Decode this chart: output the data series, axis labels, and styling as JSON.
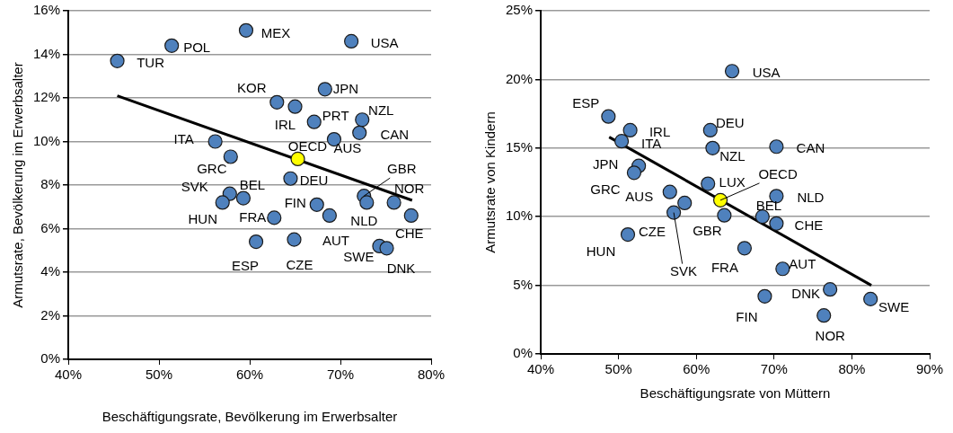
{
  "chart_data": [
    {
      "type": "scatter",
      "xlabel": "Beschäftigungsrate, Bevölkerung im Erwerbsalter",
      "ylabel": "Armutsrate, Bevölkerung im Erwerbsalter",
      "xlim": [
        40,
        80
      ],
      "ylim": [
        0,
        16
      ],
      "xticks": [
        {
          "value": 40,
          "label": "40%"
        },
        {
          "value": 50,
          "label": "50%"
        },
        {
          "value": 60,
          "label": "60%"
        },
        {
          "value": 70,
          "label": "70%"
        },
        {
          "value": 80,
          "label": "80%"
        }
      ],
      "yticks": [
        {
          "value": 0,
          "label": "0%"
        },
        {
          "value": 2,
          "label": "2%"
        },
        {
          "value": 4,
          "label": "4%"
        },
        {
          "value": 6,
          "label": "6%"
        },
        {
          "value": 8,
          "label": "8%"
        },
        {
          "value": 10,
          "label": "10%"
        },
        {
          "value": 12,
          "label": "12%"
        },
        {
          "value": 14,
          "label": "14%"
        },
        {
          "value": 16,
          "label": "16%"
        }
      ],
      "grid": "y",
      "legend": false,
      "marker": "circle",
      "series": [
        {
          "type": "line",
          "marker": "none",
          "color": "#000000",
          "x": [
            45.4,
            77.9
          ],
          "values": [
            12.1,
            7.3
          ]
        },
        {
          "color": "#4f81bd",
          "x": [
            45.4,
            51.4,
            59.6,
            71.2,
            63.0,
            65.0,
            68.3,
            67.1,
            72.4,
            72.1,
            69.3,
            56.2,
            57.9,
            64.5,
            57.8,
            57.0,
            59.3,
            72.6,
            75.9,
            72.9,
            67.4,
            62.7,
            68.8,
            77.8,
            60.7,
            64.9,
            74.3,
            75.1
          ],
          "values": [
            13.7,
            14.4,
            15.1,
            14.6,
            11.8,
            11.6,
            12.4,
            10.9,
            11.0,
            10.4,
            10.1,
            10.0,
            9.3,
            8.3,
            7.6,
            7.2,
            7.4,
            7.5,
            7.2,
            7.2,
            7.1,
            6.5,
            6.6,
            6.6,
            5.4,
            5.5,
            5.2,
            5.1
          ]
        },
        {
          "color": "#ffff00",
          "x": [
            65.3
          ],
          "values": [
            9.2
          ]
        }
      ],
      "annotations": [
        {
          "text": "TUR",
          "x": 45.4,
          "y": 13.7
        },
        {
          "text": "POL",
          "x": 51.4,
          "y": 14.4
        },
        {
          "text": "MEX",
          "x": 59.6,
          "y": 15.1
        },
        {
          "text": "USA",
          "x": 71.2,
          "y": 14.6
        },
        {
          "text": "KOR",
          "x": 63.0,
          "y": 11.8
        },
        {
          "text": "IRL",
          "x": 65.0,
          "y": 11.6
        },
        {
          "text": "JPN",
          "x": 68.3,
          "y": 12.4
        },
        {
          "text": "PRT",
          "x": 67.1,
          "y": 10.9
        },
        {
          "text": "NZL",
          "x": 72.4,
          "y": 11.0
        },
        {
          "text": "CAN",
          "x": 72.1,
          "y": 10.4
        },
        {
          "text": "AUS",
          "x": 69.3,
          "y": 10.1
        },
        {
          "text": "ITA",
          "x": 56.2,
          "y": 10.0
        },
        {
          "text": "GRC",
          "x": 57.9,
          "y": 9.3
        },
        {
          "text": "DEU",
          "x": 64.5,
          "y": 8.3
        },
        {
          "text": "SVK",
          "x": 57.8,
          "y": 7.6
        },
        {
          "text": "HUN",
          "x": 57.0,
          "y": 7.2
        },
        {
          "text": "BEL",
          "x": 59.3,
          "y": 7.4
        },
        {
          "text": "GBR",
          "x": 72.6,
          "y": 7.5
        },
        {
          "text": "NOR",
          "x": 75.9,
          "y": 7.2
        },
        {
          "text": "NLD",
          "x": 72.9,
          "y": 7.2
        },
        {
          "text": "FIN",
          "x": 67.4,
          "y": 7.1
        },
        {
          "text": "FRA",
          "x": 62.7,
          "y": 6.5
        },
        {
          "text": "AUT",
          "x": 68.8,
          "y": 6.6
        },
        {
          "text": "CHE",
          "x": 77.8,
          "y": 6.6
        },
        {
          "text": "ESP",
          "x": 60.7,
          "y": 5.4
        },
        {
          "text": "CZE",
          "x": 64.9,
          "y": 5.5
        },
        {
          "text": "SWE",
          "x": 74.3,
          "y": 5.2
        },
        {
          "text": "DNK",
          "x": 75.1,
          "y": 5.1
        },
        {
          "text": "OECD",
          "x": 65.3,
          "y": 9.2
        }
      ]
    },
    {
      "type": "scatter",
      "xlabel": "Beschäftigungsrate von Müttern",
      "ylabel": "Armutsrate von Kindern",
      "xlim": [
        40,
        90
      ],
      "ylim": [
        0,
        25
      ],
      "xticks": [
        {
          "value": 40,
          "label": "40%"
        },
        {
          "value": 50,
          "label": "50%"
        },
        {
          "value": 60,
          "label": "60%"
        },
        {
          "value": 70,
          "label": "70%"
        },
        {
          "value": 80,
          "label": "80%"
        },
        {
          "value": 90,
          "label": "90%"
        }
      ],
      "yticks": [
        {
          "value": 0,
          "label": "0%"
        },
        {
          "value": 5,
          "label": "5%"
        },
        {
          "value": 10,
          "label": "10%"
        },
        {
          "value": 15,
          "label": "15%"
        },
        {
          "value": 20,
          "label": "20%"
        },
        {
          "value": 25,
          "label": "25%"
        }
      ],
      "grid": "y",
      "legend": false,
      "marker": "circle",
      "series": [
        {
          "type": "line",
          "marker": "none",
          "color": "#000000",
          "x": [
            48.8,
            82.5
          ],
          "values": [
            15.8,
            5.0
          ]
        },
        {
          "color": "#4f81bd",
          "x": [
            64.6,
            48.7,
            51.5,
            50.4,
            61.8,
            62.1,
            70.3,
            52.6,
            52.0,
            61.5,
            56.6,
            70.3,
            68.5,
            63.6,
            57.1,
            70.3,
            51.2,
            66.2,
            71.1,
            68.8,
            77.2,
            82.4,
            76.4,
            58.5
          ],
          "values": [
            20.6,
            17.3,
            16.3,
            15.5,
            16.3,
            15.0,
            15.1,
            13.7,
            13.2,
            12.4,
            11.8,
            11.5,
            10.0,
            10.1,
            10.3,
            9.5,
            8.7,
            7.7,
            6.2,
            4.2,
            4.7,
            4.0,
            2.8,
            11.0
          ]
        },
        {
          "color": "#ffff00",
          "x": [
            63.1
          ],
          "values": [
            11.2
          ]
        }
      ],
      "annotations": [
        {
          "text": "USA",
          "x": 64.6,
          "y": 20.6
        },
        {
          "text": "ESP",
          "x": 48.7,
          "y": 17.3
        },
        {
          "text": "IRL",
          "x": 51.5,
          "y": 16.3
        },
        {
          "text": "ITA",
          "x": 50.4,
          "y": 15.5
        },
        {
          "text": "DEU",
          "x": 61.8,
          "y": 16.3
        },
        {
          "text": "NZL",
          "x": 62.1,
          "y": 15.0
        },
        {
          "text": "CAN",
          "x": 70.3,
          "y": 15.1
        },
        {
          "text": "JPN",
          "x": 52.6,
          "y": 13.7
        },
        {
          "text": "GRC",
          "x": 52.0,
          "y": 13.2
        },
        {
          "text": "LUX",
          "x": 61.5,
          "y": 12.4
        },
        {
          "text": "AUS",
          "x": 56.6,
          "y": 11.8
        },
        {
          "text": "NLD",
          "x": 70.3,
          "y": 11.5
        },
        {
          "text": "BEL",
          "x": 68.5,
          "y": 10.0
        },
        {
          "text": "GBR",
          "x": 63.6,
          "y": 10.1
        },
        {
          "text": "SVK",
          "x": 57.1,
          "y": 10.3
        },
        {
          "text": "CHE",
          "x": 70.3,
          "y": 9.5
        },
        {
          "text": "CZE",
          "x": 51.2,
          "y": 8.7
        },
        {
          "text": "HUN",
          "x": 51.2,
          "y": 8.7
        },
        {
          "text": "FRA",
          "x": 66.2,
          "y": 7.7
        },
        {
          "text": "AUT",
          "x": 71.1,
          "y": 6.2
        },
        {
          "text": "FIN",
          "x": 68.8,
          "y": 4.2
        },
        {
          "text": "DNK",
          "x": 77.2,
          "y": 4.7
        },
        {
          "text": "SWE",
          "x": 82.4,
          "y": 4.0
        },
        {
          "text": "NOR",
          "x": 76.4,
          "y": 2.8
        },
        {
          "text": "OECD",
          "x": 63.1,
          "y": 11.2
        }
      ]
    }
  ]
}
